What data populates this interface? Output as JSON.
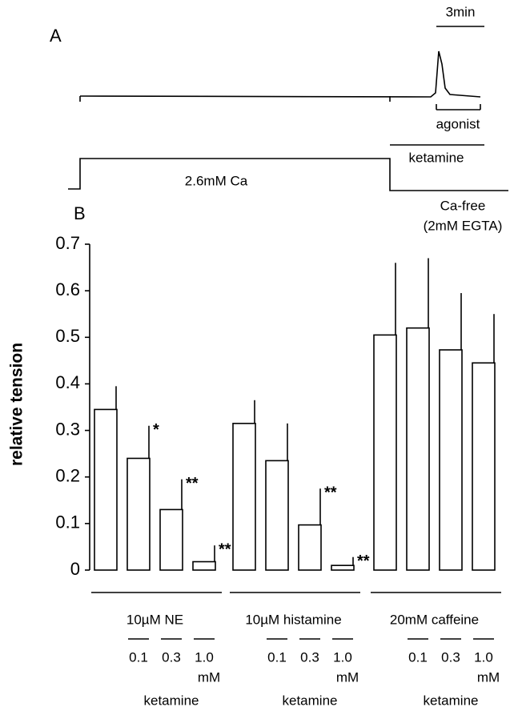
{
  "panel_a": {
    "label": "A",
    "scale": "3min",
    "agonist": "agonist",
    "ketamine": "ketamine",
    "ca": "2.6mM Ca",
    "ca_free": "Ca-free",
    "egta": "(2mM EGTA)"
  },
  "chart_data": {
    "type": "bar",
    "title": "B",
    "y_label": "relative tension",
    "categories": [
      null,
      "0.1",
      "0.3",
      "1.0",
      null,
      "0.1",
      "0.3",
      "1.0",
      null,
      "0.1",
      "0.3",
      "1.0"
    ],
    "values": [
      0.345,
      0.24,
      0.13,
      0.018,
      0.315,
      0.235,
      0.097,
      0.01,
      0.505,
      0.52,
      0.473,
      0.445
    ],
    "errors": [
      0.05,
      0.07,
      0.065,
      0.035,
      0.05,
      0.08,
      0.078,
      0.018,
      0.155,
      0.15,
      0.122,
      0.105
    ],
    "significance": [
      null,
      "*",
      "**",
      "**",
      null,
      null,
      "**",
      "**",
      null,
      null,
      null,
      null
    ],
    "groups": [
      {
        "label": "10µM NE",
        "unit": "mM",
        "note": "ketamine"
      },
      {
        "label": "10µM histamine",
        "unit": "mM",
        "note": "ketamine"
      },
      {
        "label": "20mM caffeine",
        "unit": "mM",
        "note": "ketamine"
      }
    ],
    "color": "#ffffff",
    "ylim": [
      0,
      0.7
    ],
    "yticks": [
      {
        "value": 0,
        "label": "0"
      },
      0.1,
      0.2,
      0.3,
      0.4,
      0.5,
      0.6,
      0.7
    ]
  }
}
